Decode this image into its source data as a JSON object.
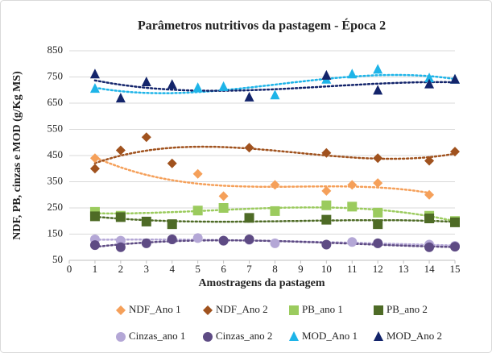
{
  "chart_data": {
    "type": "scatter",
    "title": "Parâmetros nutritivos da pastagem - Época 2",
    "xlabel": "Amostragens da pastagem",
    "ylabel": "NDF, PB, cinzas e MOD (g/Kg MS)",
    "xlim": [
      0,
      15
    ],
    "xticks": [
      0,
      1,
      2,
      3,
      4,
      5,
      6,
      7,
      8,
      9,
      10,
      11,
      12,
      13,
      14,
      15
    ],
    "ylim": [
      50,
      850
    ],
    "yticks": [
      50,
      150,
      250,
      350,
      450,
      550,
      650,
      750,
      850
    ],
    "grid": true,
    "legend": "bottom",
    "trendline": "polynomial",
    "series": [
      {
        "name": "NDF_Ano 1",
        "color": "#f5a05a",
        "marker": "diamond",
        "x": [
          1,
          5,
          6,
          8,
          10,
          11,
          12,
          14
        ],
        "values": [
          440,
          380,
          295,
          338,
          315,
          338,
          345,
          300
        ]
      },
      {
        "name": "NDF_Ano 2",
        "color": "#a0521e",
        "marker": "diamond",
        "x": [
          1,
          2,
          3,
          4,
          7,
          10,
          12,
          14,
          15
        ],
        "values": [
          400,
          470,
          520,
          420,
          480,
          460,
          440,
          430,
          465
        ]
      },
      {
        "name": "PB_ano 1",
        "color": "#9bcb5e",
        "marker": "square",
        "x": [
          1,
          2,
          5,
          6,
          8,
          10,
          11,
          12,
          14,
          15
        ],
        "values": [
          235,
          220,
          240,
          250,
          238,
          260,
          255,
          232,
          220,
          200
        ]
      },
      {
        "name": "PB_ano 2",
        "color": "#4e6b26",
        "marker": "square",
        "x": [
          1,
          2,
          3,
          4,
          7,
          10,
          12,
          14,
          15
        ],
        "values": [
          218,
          215,
          198,
          188,
          212,
          205,
          188,
          210,
          195
        ]
      },
      {
        "name": "Cinzas_ano 1",
        "color": "#b4a7d6",
        "marker": "circle",
        "x": [
          1,
          2,
          4,
          5,
          6,
          7,
          8,
          11,
          12,
          14,
          15
        ],
        "values": [
          130,
          125,
          130,
          135,
          125,
          128,
          115,
          120,
          115,
          110,
          105
        ]
      },
      {
        "name": "Cinzas_ano 2",
        "color": "#5e4b84",
        "marker": "circle",
        "x": [
          1,
          2,
          3,
          4,
          6,
          7,
          10,
          12,
          14,
          15
        ],
        "values": [
          108,
          100,
          115,
          130,
          125,
          130,
          110,
          115,
          100,
          102
        ]
      },
      {
        "name": "MOD_Ano 1",
        "color": "#1eb4e8",
        "marker": "triangle",
        "x": [
          1,
          5,
          6,
          8,
          10,
          11,
          12,
          14,
          15
        ],
        "values": [
          705,
          708,
          712,
          680,
          740,
          760,
          778,
          745,
          740
        ]
      },
      {
        "name": "MOD_Ano 2",
        "color": "#13246b",
        "marker": "triangle",
        "x": [
          1,
          2,
          3,
          4,
          7,
          10,
          12,
          14,
          15
        ],
        "values": [
          760,
          668,
          730,
          720,
          672,
          755,
          698,
          722,
          740
        ]
      }
    ]
  }
}
